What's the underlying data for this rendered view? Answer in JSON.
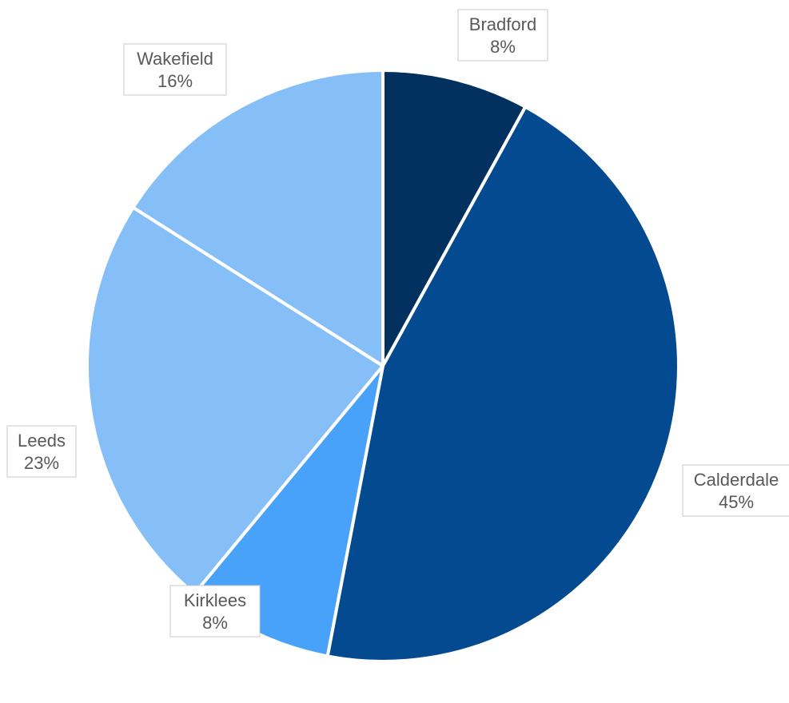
{
  "chart_data": {
    "type": "pie",
    "start_angle_deg": 0,
    "direction": "clockwise",
    "slices": [
      {
        "category": "Bradford",
        "value": 8,
        "label": "8%",
        "color": "#02305f"
      },
      {
        "category": "Calderdale",
        "value": 45,
        "label": "45%",
        "color": "#044a90"
      },
      {
        "category": "Kirklees",
        "value": 8,
        "label": "8%",
        "color": "#48a2fa"
      },
      {
        "category": "Leeds",
        "value": 23,
        "label": "23%",
        "color": "#86bff8"
      },
      {
        "category": "Wakefield",
        "value": 16,
        "label": "16%",
        "color": "#86bff8"
      }
    ]
  }
}
